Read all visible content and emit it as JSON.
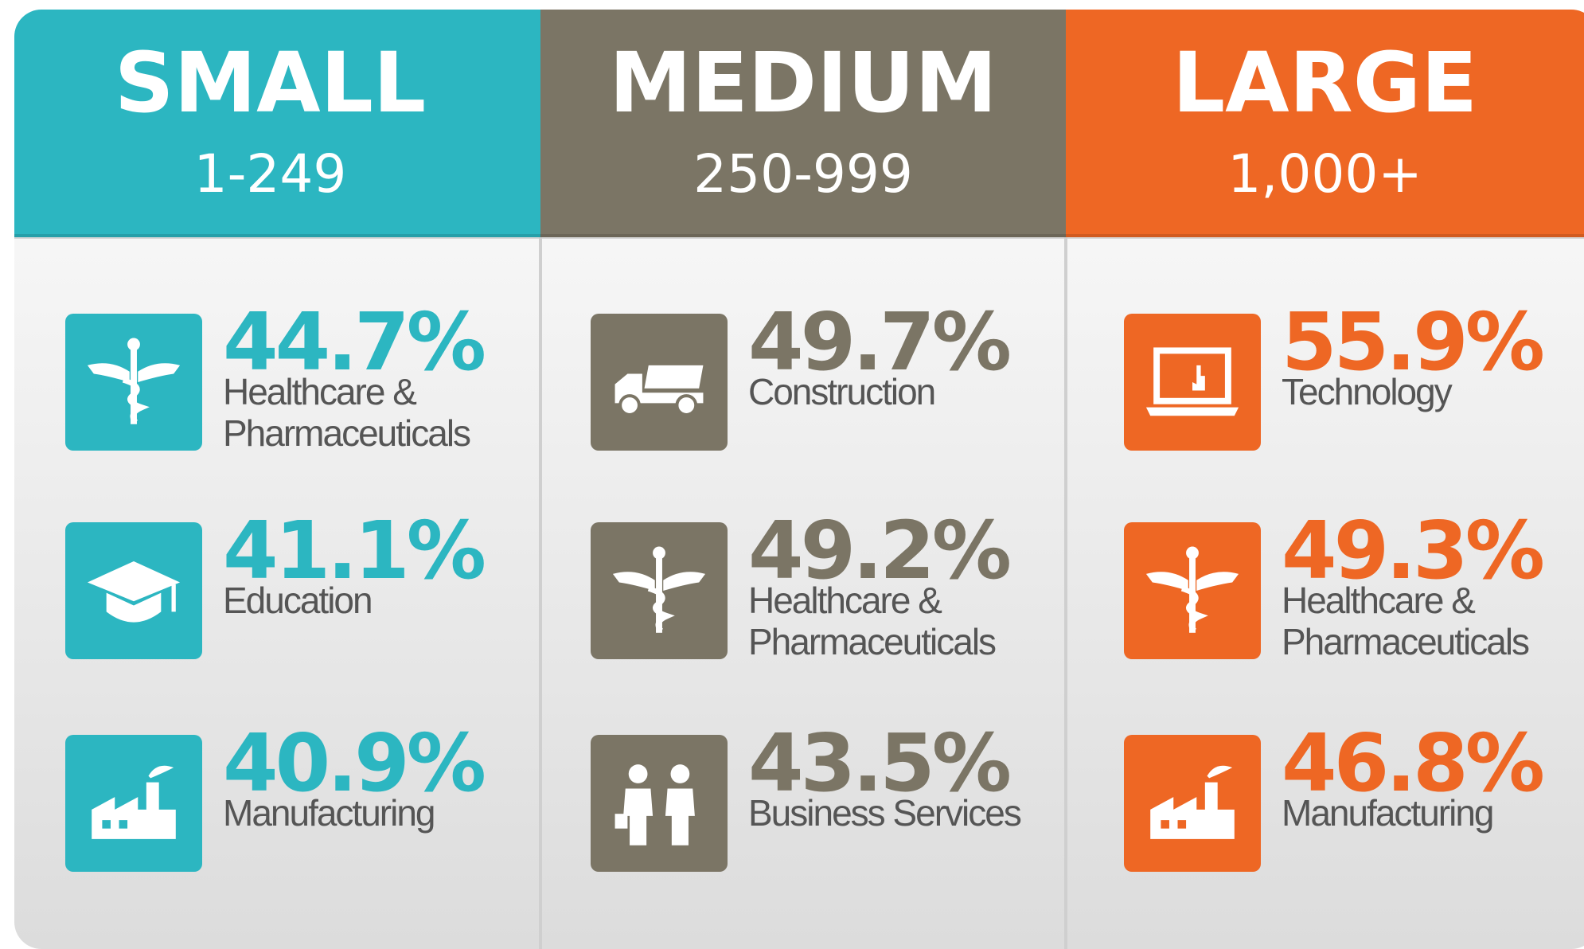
{
  "columns": [
    {
      "title": "SMALL",
      "range": "1-249",
      "color": "#2cb6c1",
      "items": [
        {
          "value": "44.7%",
          "label_lines": [
            "Healthcare &",
            "Pharmaceuticals"
          ]
        },
        {
          "value": "41.1%",
          "label_lines": [
            "Education"
          ]
        },
        {
          "value": "40.9%",
          "label_lines": [
            "Manufacturing"
          ]
        }
      ]
    },
    {
      "title": "MEDIUM",
      "range": "250-999",
      "color": "#7b7565",
      "items": [
        {
          "value": "49.7%",
          "label_lines": [
            "Construction"
          ]
        },
        {
          "value": "49.2%",
          "label_lines": [
            "Healthcare &",
            "Pharmaceuticals"
          ]
        },
        {
          "value": "43.5%",
          "label_lines": [
            "Business Services"
          ]
        }
      ]
    },
    {
      "title": "LARGE",
      "range": "1,000+",
      "color": "#ee6724",
      "items": [
        {
          "value": "55.9%",
          "label_lines": [
            "Technology"
          ]
        },
        {
          "value": "49.3%",
          "label_lines": [
            "Healthcare &",
            "Pharmaceuticals"
          ]
        },
        {
          "value": "46.8%",
          "label_lines": [
            "Manufacturing"
          ]
        }
      ]
    }
  ]
}
